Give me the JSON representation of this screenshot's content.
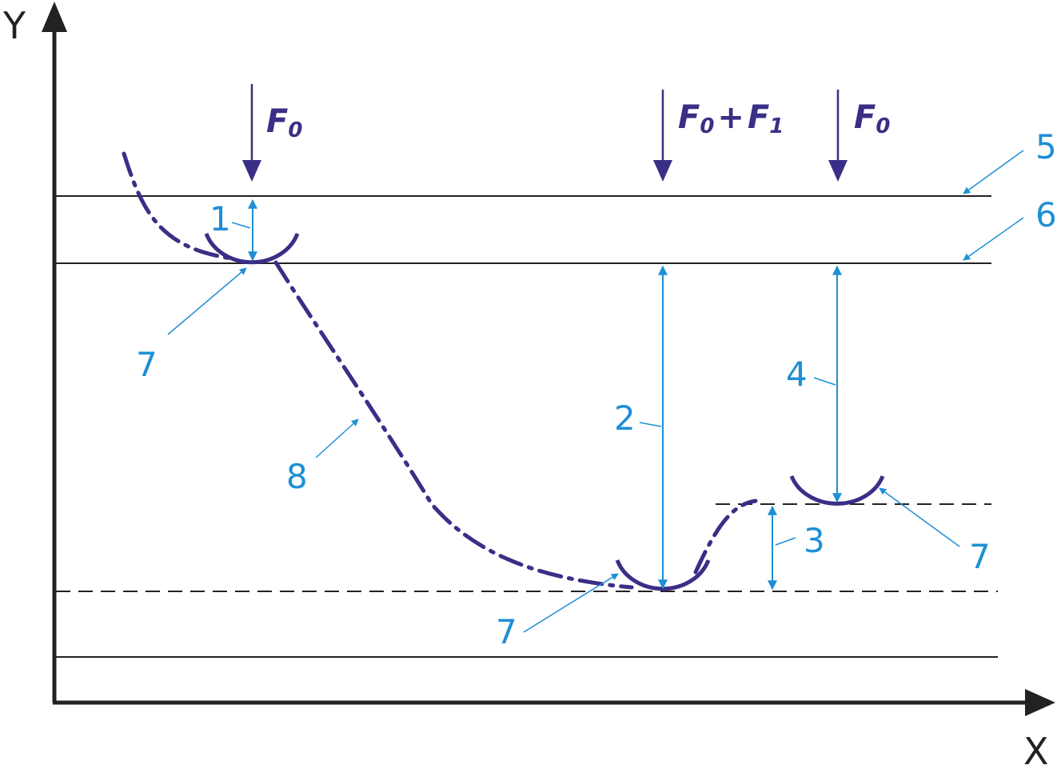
{
  "axes": {
    "x_label": "X",
    "y_label": "Y"
  },
  "forces": {
    "left": {
      "main": "F",
      "sub": "0"
    },
    "middle": {
      "part1_main": "F",
      "part1_sub": "0",
      "plus": "+",
      "part2_main": "F",
      "part2_sub": "1"
    },
    "right": {
      "main": "F",
      "sub": "0"
    }
  },
  "callouts": {
    "n1": "1",
    "n2": "2",
    "n3": "3",
    "n4": "4",
    "n5": "5",
    "n6": "6",
    "n7_left": "7",
    "n7_bottom": "7",
    "n7_right": "7",
    "n8": "8"
  },
  "colors": {
    "axis": "#222222",
    "force_arrow": "#3a2f86",
    "indenter": "#3a2f86",
    "annotation": "#1e8fd6",
    "reference_lines": "#222222"
  },
  "icons": {
    "indenters": "semicircle-indenter",
    "profile": "dash-dot-curve"
  }
}
